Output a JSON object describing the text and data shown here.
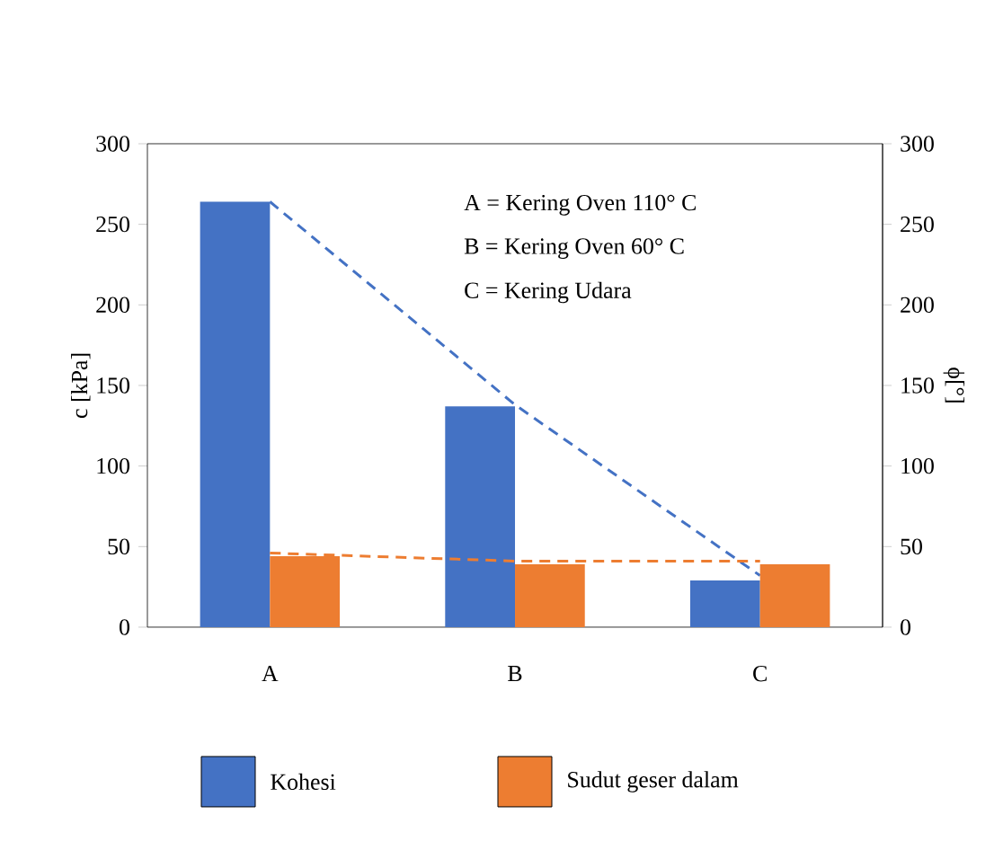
{
  "chart_data": {
    "type": "bar",
    "categories": [
      "A",
      "B",
      "C"
    ],
    "series": [
      {
        "name": "Kohesi",
        "color": "#4472c4",
        "values": [
          264,
          137,
          29
        ]
      },
      {
        "name": "Sudut geser dalam",
        "color": "#ed7d31",
        "values": [
          44,
          39,
          39
        ],
        "axis": "y2"
      },
      {
        "type": "line",
        "color": "#4472c4",
        "values": [
          264,
          138,
          32
        ],
        "line_style": "dashed",
        "marker": "none"
      },
      {
        "type": "line",
        "color": "#ed7d31",
        "values": [
          46,
          41,
          41
        ],
        "axis": "y2",
        "line_style": "dashed",
        "marker": "none"
      }
    ],
    "ylabel": "c [kPa]",
    "y2label": "ϕ[°]",
    "ylim": [
      0,
      300
    ],
    "yticks": [
      0,
      50,
      100,
      150,
      200,
      250,
      300
    ],
    "y2lim": [
      0,
      300
    ],
    "y2ticks": [
      0,
      50,
      100,
      150,
      200,
      250,
      300
    ],
    "annotations": [
      "A = Kering Oven 110° C",
      "B = Kering Oven 60° C",
      "C = Kering Udara"
    ],
    "legend": "bottom"
  }
}
